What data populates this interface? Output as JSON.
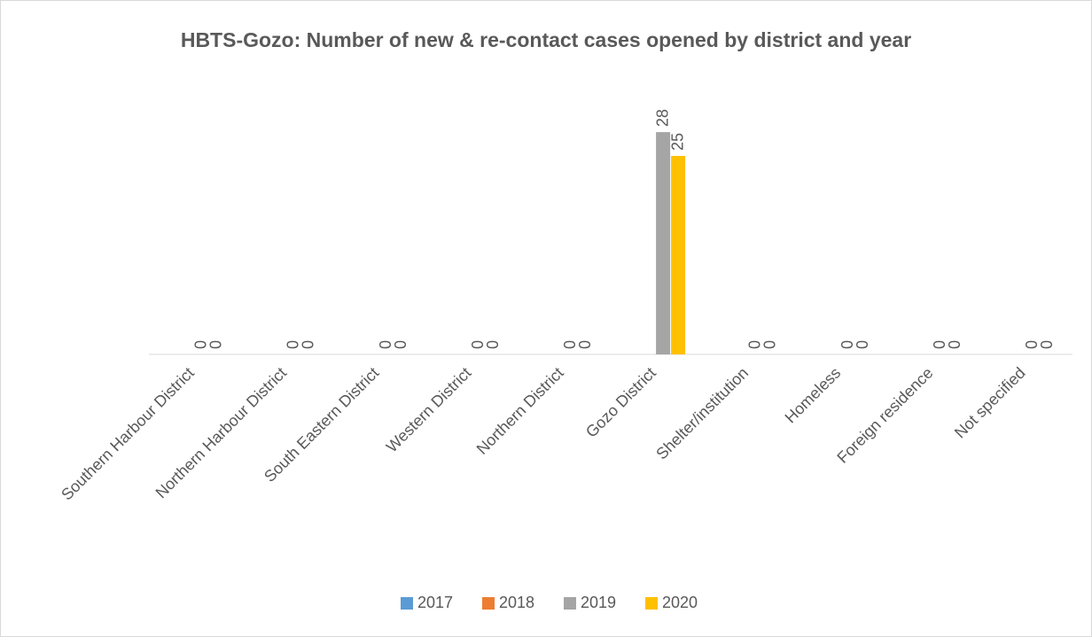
{
  "chart_data": {
    "type": "bar",
    "title": "HBTS-Gozo: Number of new & re-contact cases opened by district and year",
    "categories": [
      "Southern Harbour District",
      "Northern Harbour District",
      "South Eastern District",
      "Western District",
      "Northern District",
      "Gozo District",
      "Shelter/institution",
      "Homeless",
      "Foreign residence",
      "Not specified"
    ],
    "series": [
      {
        "name": "2017",
        "color": "#5b9bd5",
        "values": [
          null,
          null,
          null,
          null,
          null,
          null,
          null,
          null,
          null,
          null
        ]
      },
      {
        "name": "2018",
        "color": "#ed7d31",
        "values": [
          null,
          null,
          null,
          null,
          null,
          null,
          null,
          null,
          null,
          null
        ]
      },
      {
        "name": "2019",
        "color": "#a5a5a5",
        "values": [
          0,
          0,
          0,
          0,
          0,
          28,
          0,
          0,
          0,
          0
        ]
      },
      {
        "name": "2020",
        "color": "#ffc000",
        "values": [
          0,
          0,
          0,
          0,
          0,
          25,
          0,
          0,
          0,
          0
        ]
      }
    ],
    "legend": "bottom"
  }
}
